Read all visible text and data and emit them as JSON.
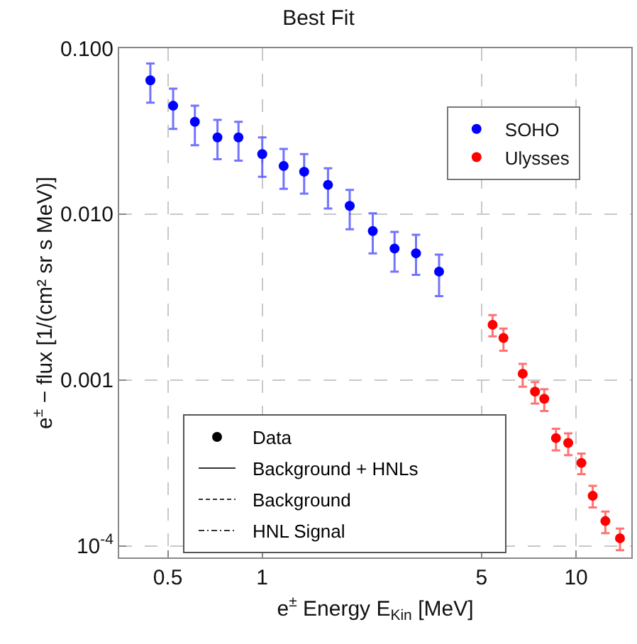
{
  "chart_data": {
    "type": "scatter",
    "title": "Best Fit",
    "xlabel": "e$^{±}$ Energy E$_{Kin}$ [MeV]",
    "ylabel": "e$^{±}$ − flux [1/(cm² sr s MeV)]",
    "log": "xy",
    "grid": true,
    "legend": "top right",
    "marker": "circle",
    "xlim": [
      0.35,
      15
    ],
    "xticks": [
      0.5,
      1,
      5,
      10
    ],
    "ylim": [
      8.5e-05,
      0.1
    ],
    "yticks": [
      {
        "value": 0.1,
        "label": "0.100"
      },
      {
        "value": 0.01,
        "label": "0.010"
      },
      0.001,
      {
        "value": 0.0001,
        "label": "10$^{-4}$"
      }
    ],
    "annotations": [
      "Data",
      "Background + HNLs",
      "Background",
      "HNL Signal"
    ],
    "series": [
      {
        "name": "SOHO",
        "color": "#0000ff",
        "x": [
          0.44,
          0.52,
          0.61,
          0.72,
          0.84,
          1.0,
          1.17,
          1.36,
          1.62,
          1.9,
          2.25,
          2.64,
          3.09,
          3.66
        ],
        "values": [
          0.064,
          0.045,
          0.036,
          0.029,
          0.029,
          0.023,
          0.0195,
          0.018,
          0.015,
          0.0112,
          0.0079,
          0.0062,
          0.0058,
          0.0045
        ],
        "errors": [
          [
            0.047,
            0.081
          ],
          [
            0.0326,
            0.057
          ],
          [
            0.026,
            0.045
          ],
          [
            0.0214,
            0.037
          ],
          [
            0.021,
            0.036
          ],
          [
            0.0168,
            0.029
          ],
          [
            0.0142,
            0.0247
          ],
          [
            0.0133,
            0.023
          ],
          [
            0.0108,
            0.0189
          ],
          [
            0.0081,
            0.014
          ],
          [
            0.0058,
            0.0101
          ],
          [
            0.0045,
            0.0078
          ],
          [
            0.0043,
            0.0075
          ],
          [
            0.0032,
            0.0057
          ]
        ]
      },
      {
        "name": "Ulysses",
        "color": "#ff0000",
        "x": [
          5.42,
          5.87,
          6.76,
          7.4,
          7.92,
          8.63,
          9.44,
          10.4,
          11.3,
          12.4,
          13.8
        ],
        "values": [
          0.00215,
          0.00179,
          0.00109,
          0.00085,
          0.00077,
          0.000446,
          0.000417,
          0.000316,
          0.0002,
          0.000141,
          0.000111
        ],
        "errors": [
          [
            0.00183,
            0.00246
          ],
          [
            0.0015,
            0.00204
          ],
          [
            0.00091,
            0.00125
          ],
          [
            0.00072,
            0.00097
          ],
          [
            0.00065,
            0.00088
          ],
          [
            0.000376,
            0.000508
          ],
          [
            0.000352,
            0.000476
          ],
          [
            0.00027,
            0.00036
          ],
          [
            0.00017,
            0.00023
          ],
          [
            0.000119,
            0.000161
          ],
          [
            9.4e-05,
            0.000127
          ]
        ]
      }
    ]
  }
}
